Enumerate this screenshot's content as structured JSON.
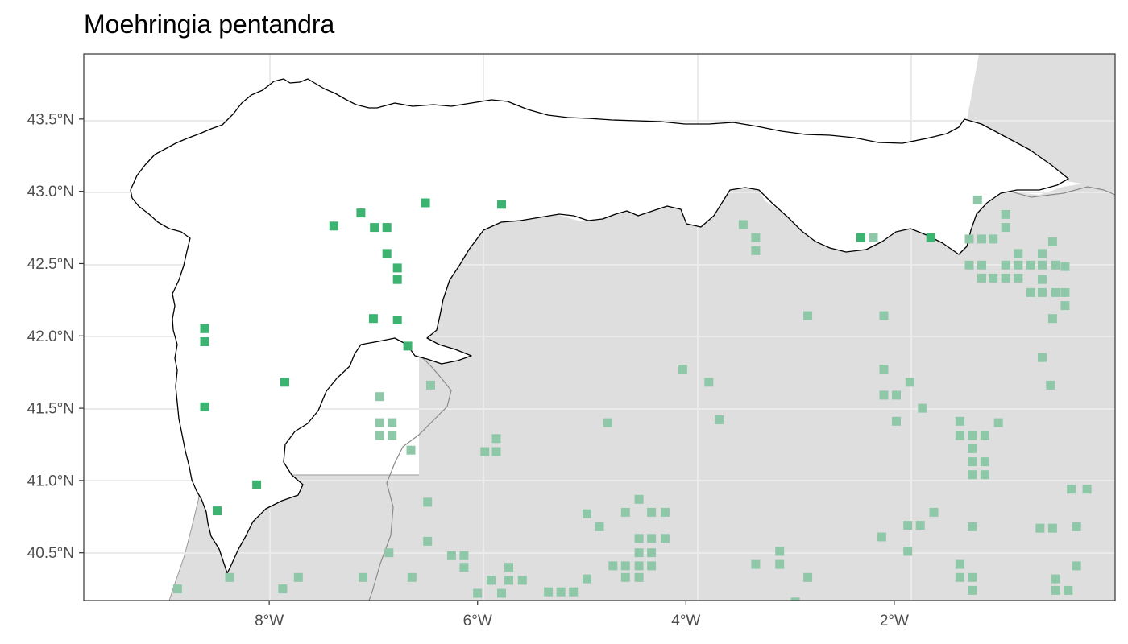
{
  "title": "Moehringia pentandra",
  "colors": {
    "panel_background": "#ffffff",
    "grid": "#ebebeb",
    "land_shade": "#dedede",
    "focus_region_fill": "#ffffff",
    "focus_region_border": "#000000",
    "internal_border": "#8a8a8a",
    "point_inside": "#3cb371",
    "point_outside": "#8fc8a8",
    "axis_text": "#4d4d4d"
  },
  "axes": {
    "x_ticks": [
      {
        "value": -8,
        "label": "8°W"
      },
      {
        "value": -6,
        "label": "6°W"
      },
      {
        "value": -4,
        "label": "4°W"
      },
      {
        "value": -2,
        "label": "2°W"
      }
    ],
    "y_ticks": [
      {
        "value": 43.5,
        "label": "43.5°N"
      },
      {
        "value": 43.0,
        "label": "43.0°N"
      },
      {
        "value": 42.5,
        "label": "42.5°N"
      },
      {
        "value": 42.0,
        "label": "42.0°N"
      },
      {
        "value": 41.5,
        "label": "41.5°N"
      },
      {
        "value": 41.0,
        "label": "41.0°N"
      },
      {
        "value": 40.5,
        "label": "40.5°N"
      }
    ],
    "xlim": [
      -9.78,
      0.12
    ],
    "ylim": [
      40.17,
      43.95
    ]
  },
  "occurrences_inside": [
    [
      -7.38,
      42.76
    ],
    [
      -7.12,
      42.85
    ],
    [
      -6.99,
      42.75
    ],
    [
      -6.87,
      42.75
    ],
    [
      -6.87,
      42.57
    ],
    [
      -6.77,
      42.47
    ],
    [
      -6.77,
      42.39
    ],
    [
      -6.5,
      42.92
    ],
    [
      -5.77,
      42.91
    ],
    [
      -7.0,
      42.12
    ],
    [
      -6.77,
      42.11
    ],
    [
      -6.67,
      41.93
    ],
    [
      -8.62,
      42.05
    ],
    [
      -8.62,
      41.96
    ],
    [
      -7.85,
      41.68
    ],
    [
      -8.62,
      41.51
    ],
    [
      -8.12,
      40.97
    ],
    [
      -8.5,
      40.79
    ],
    [
      -2.32,
      42.68
    ],
    [
      -1.65,
      42.68
    ]
  ],
  "occurrences_outside": [
    [
      -8.88,
      40.25
    ],
    [
      -8.38,
      40.33
    ],
    [
      -7.87,
      40.25
    ],
    [
      -7.72,
      40.33
    ],
    [
      -7.1,
      40.33
    ],
    [
      -6.85,
      40.5
    ],
    [
      -6.63,
      40.33
    ],
    [
      -6.25,
      40.48
    ],
    [
      -6.13,
      40.48
    ],
    [
      -6.13,
      40.4
    ],
    [
      -6.0,
      40.22
    ],
    [
      -5.87,
      40.31
    ],
    [
      -5.7,
      40.4
    ],
    [
      -5.7,
      40.31
    ],
    [
      -5.57,
      40.31
    ],
    [
      -5.77,
      40.22
    ],
    [
      -5.32,
      40.23
    ],
    [
      -5.2,
      40.23
    ],
    [
      -5.08,
      40.23
    ],
    [
      -4.95,
      40.32
    ],
    [
      -4.95,
      40.77
    ],
    [
      -4.83,
      40.68
    ],
    [
      -4.7,
      40.41
    ],
    [
      -4.58,
      40.41
    ],
    [
      -4.45,
      40.41
    ],
    [
      -4.58,
      40.33
    ],
    [
      -4.45,
      40.33
    ],
    [
      -4.33,
      40.41
    ],
    [
      -4.45,
      40.5
    ],
    [
      -4.33,
      40.5
    ],
    [
      -4.45,
      40.6
    ],
    [
      -4.33,
      40.6
    ],
    [
      -4.2,
      40.6
    ],
    [
      -4.58,
      40.78
    ],
    [
      -4.45,
      40.87
    ],
    [
      -4.33,
      40.78
    ],
    [
      -4.2,
      40.78
    ],
    [
      -6.94,
      41.58
    ],
    [
      -6.94,
      41.4
    ],
    [
      -6.94,
      41.31
    ],
    [
      -6.82,
      41.4
    ],
    [
      -6.82,
      41.31
    ],
    [
      -6.64,
      41.21
    ],
    [
      -6.45,
      41.66
    ],
    [
      -6.48,
      40.85
    ],
    [
      -6.48,
      40.58
    ],
    [
      -5.82,
      41.29
    ],
    [
      -5.82,
      41.2
    ],
    [
      -5.93,
      41.2
    ],
    [
      -4.75,
      41.4
    ],
    [
      -4.03,
      41.77
    ],
    [
      -3.78,
      41.68
    ],
    [
      -3.68,
      41.42
    ],
    [
      -3.45,
      42.77
    ],
    [
      -3.33,
      42.68
    ],
    [
      -3.33,
      42.59
    ],
    [
      -2.83,
      42.14
    ],
    [
      -3.33,
      40.42
    ],
    [
      -3.1,
      40.51
    ],
    [
      -3.1,
      40.42
    ],
    [
      -2.83,
      40.33
    ],
    [
      -2.95,
      40.16
    ],
    [
      -2.2,
      42.68
    ],
    [
      -2.1,
      42.14
    ],
    [
      -2.1,
      41.77
    ],
    [
      -2.1,
      41.59
    ],
    [
      -1.98,
      41.59
    ],
    [
      -1.98,
      41.41
    ],
    [
      -1.85,
      41.68
    ],
    [
      -1.73,
      41.5
    ],
    [
      -2.12,
      40.61
    ],
    [
      -1.87,
      40.69
    ],
    [
      -1.75,
      40.69
    ],
    [
      -1.87,
      40.51
    ],
    [
      -1.62,
      40.78
    ],
    [
      -1.37,
      41.41
    ],
    [
      -1.37,
      41.31
    ],
    [
      -1.25,
      41.31
    ],
    [
      -1.25,
      41.22
    ],
    [
      -1.25,
      41.13
    ],
    [
      -1.13,
      41.13
    ],
    [
      -1.25,
      41.04
    ],
    [
      -1.13,
      41.04
    ],
    [
      -1.13,
      41.31
    ],
    [
      -1.0,
      41.4
    ],
    [
      -1.25,
      40.68
    ],
    [
      -1.37,
      40.42
    ],
    [
      -1.37,
      40.33
    ],
    [
      -1.25,
      40.33
    ],
    [
      -1.25,
      40.24
    ],
    [
      -1.2,
      42.94
    ],
    [
      -1.28,
      42.67
    ],
    [
      -1.16,
      42.67
    ],
    [
      -1.05,
      42.67
    ],
    [
      -1.28,
      42.49
    ],
    [
      -1.16,
      42.49
    ],
    [
      -1.16,
      42.4
    ],
    [
      -1.05,
      42.4
    ],
    [
      -0.93,
      42.4
    ],
    [
      -0.93,
      42.49
    ],
    [
      -0.81,
      42.4
    ],
    [
      -0.81,
      42.49
    ],
    [
      -0.81,
      42.57
    ],
    [
      -0.93,
      42.75
    ],
    [
      -0.93,
      42.84
    ],
    [
      -0.69,
      42.49
    ],
    [
      -0.69,
      42.3
    ],
    [
      -0.58,
      42.3
    ],
    [
      -0.58,
      42.49
    ],
    [
      -0.58,
      42.57
    ],
    [
      -0.58,
      42.39
    ],
    [
      -0.45,
      42.3
    ],
    [
      -0.45,
      42.49
    ],
    [
      -0.36,
      42.48
    ],
    [
      -0.36,
      42.3
    ],
    [
      -0.36,
      42.21
    ],
    [
      -0.48,
      42.65
    ],
    [
      -0.48,
      42.12
    ],
    [
      -0.58,
      41.85
    ],
    [
      -0.5,
      41.66
    ],
    [
      -0.6,
      40.67
    ],
    [
      -0.48,
      40.67
    ],
    [
      -0.25,
      40.68
    ],
    [
      -0.45,
      40.32
    ],
    [
      -0.45,
      40.24
    ],
    [
      -0.33,
      40.24
    ],
    [
      -0.3,
      40.94
    ],
    [
      -0.15,
      40.94
    ],
    [
      -0.25,
      40.41
    ]
  ]
}
